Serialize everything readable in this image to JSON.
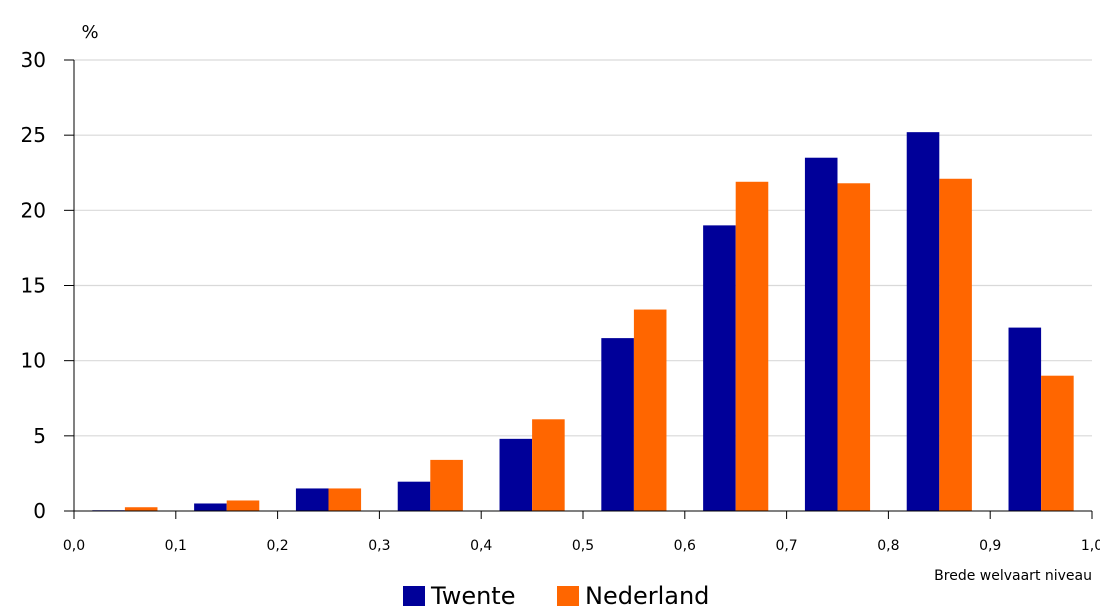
{
  "chart_data": {
    "type": "bar",
    "ylabel": "%",
    "xlabel": "Brede welvaart niveau",
    "ylim": [
      0,
      30
    ],
    "yticks": [
      "0",
      "5",
      "10",
      "15",
      "20",
      "25",
      "30"
    ],
    "xlim": [
      0.0,
      1.0
    ],
    "xticks": [
      "0,0",
      "0,1",
      "0,2",
      "0,3",
      "0,4",
      "0,5",
      "0,6",
      "0,7",
      "0,8",
      "0,9",
      "1,0"
    ],
    "grid": true,
    "legend_position": "bottom-center",
    "series": [
      {
        "name": "Twente",
        "color": "#000099",
        "values": [
          0.05,
          0.5,
          1.5,
          1.95,
          4.8,
          11.5,
          19.0,
          23.5,
          25.2,
          12.2
        ]
      },
      {
        "name": "Nederland",
        "color": "#ff6600",
        "values": [
          0.25,
          0.7,
          1.5,
          3.4,
          6.1,
          13.4,
          21.9,
          21.8,
          22.1,
          9.0
        ]
      }
    ]
  }
}
